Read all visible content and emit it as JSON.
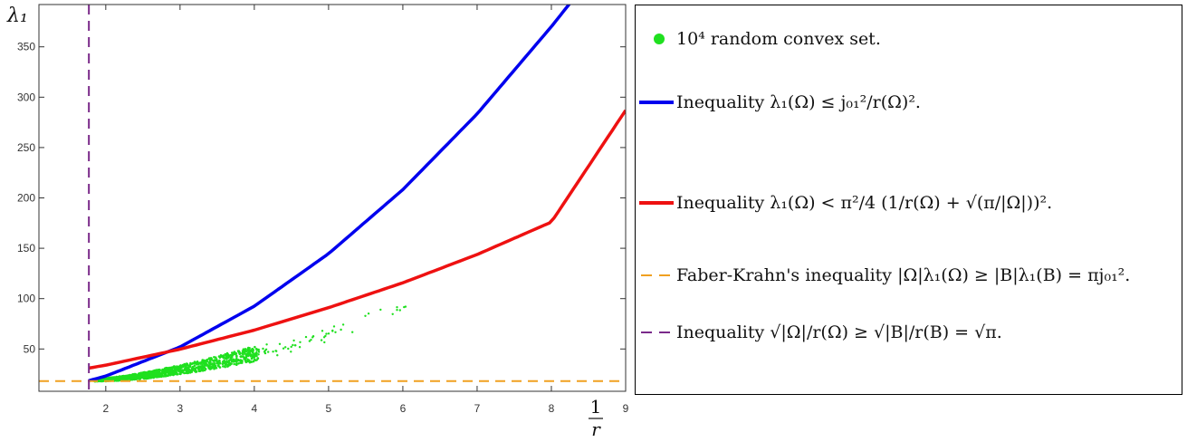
{
  "chart_data": {
    "type": "scatter",
    "title": "",
    "xlabel_num": "1",
    "xlabel_den": "r",
    "ylabel": "λ₁",
    "xlim": [
      1.1,
      9.0
    ],
    "ylim": [
      8,
      392
    ],
    "xticks": [
      2,
      3,
      4,
      5,
      6,
      7,
      8,
      9
    ],
    "yticks": [
      50,
      100,
      150,
      200,
      250,
      300,
      350
    ],
    "grid": false,
    "legend_placement": "right, outside plot",
    "series": [
      {
        "name": "10⁴ random convex set.",
        "kind": "scatter",
        "color": "#1fe01f",
        "points_summary": "10000 points from x≈1.8 to x≈6.1, lying between y≈18 and the blue curve",
        "x": [
          1.85,
          2.0,
          2.3,
          2.6,
          3.0,
          3.3,
          3.6,
          3.9,
          4.2,
          4.5,
          4.8,
          5.0,
          5.3,
          5.5,
          5.8,
          6.1
        ],
        "y_low": [
          18,
          18,
          19,
          21,
          25,
          28,
          32,
          36,
          41,
          46,
          53,
          58,
          66,
          72,
          82,
          94
        ],
        "y_high": [
          19,
          21,
          24,
          28,
          34,
          39,
          45,
          51,
          55,
          59,
          66,
          70,
          80,
          86,
          92,
          95
        ]
      },
      {
        "name": "Inequality λ₁(Ω) ≤ j₀₁² / r(Ω)².",
        "kind": "line",
        "color": "#0000ee",
        "x": [
          1.77,
          2.0,
          3.0,
          4.0,
          5.0,
          6.0,
          7.0,
          8.0,
          8.28
        ],
        "y": [
          18.5,
          23.1,
          52.0,
          92.5,
          144.6,
          208.2,
          283.4,
          370.1,
          396
        ]
      },
      {
        "name": "Inequality λ₁(Ω) < π²/4 (1/r(Ω) + √(π/|Ω|))².",
        "kind": "line",
        "color": "#ee1111",
        "x": [
          1.77,
          2.0,
          3.0,
          4.0,
          5.0,
          6.0,
          7.0,
          8.0,
          9.0
        ],
        "y": [
          31.0,
          33.9,
          49.8,
          68.7,
          91.0,
          115.7,
          143.8,
          176.0,
          287
        ]
      },
      {
        "name": "Faber-Krahn's inequality |Ω|λ₁(Ω) ≥ |B|λ₁(B) = πj₀₁².",
        "kind": "hline",
        "color": "#f0a020",
        "dash": true,
        "y": 18.17
      },
      {
        "name": "Inequality √|Ω| / r(Ω) ≥ √|B| / r(B) = √π.",
        "kind": "vline",
        "color": "#7a2a8a",
        "dash": true,
        "x": 1.7725
      }
    ]
  },
  "legend": {
    "entries": [
      {
        "marker": "dot",
        "color": "#1fe01f",
        "text": "10⁴ random convex set."
      },
      {
        "marker": "line",
        "color": "#0000ee",
        "text": "Inequality λ₁(Ω) ≤ j₀₁²/r(Ω)²."
      },
      {
        "marker": "line",
        "color": "#ee1111",
        "text": "Inequality λ₁(Ω) < π²/4 (1/r(Ω) + √(π/|Ω|))²."
      },
      {
        "marker": "dash",
        "color": "#f0a020",
        "text": "Faber-Krahn's inequality |Ω|λ₁(Ω) ≥ |B|λ₁(B) = πj₀₁²."
      },
      {
        "marker": "dash",
        "color": "#7a2a8a",
        "text": "Inequality √|Ω|/r(Ω) ≥ √|B|/r(B) = √π."
      }
    ]
  }
}
